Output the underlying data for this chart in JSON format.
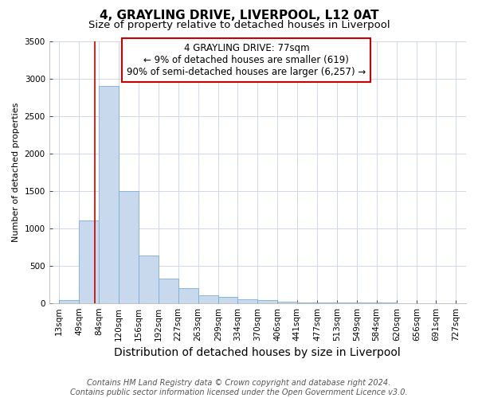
{
  "title": "4, GRAYLING DRIVE, LIVERPOOL, L12 0AT",
  "subtitle": "Size of property relative to detached houses in Liverpool",
  "xlabel": "Distribution of detached houses by size in Liverpool",
  "ylabel": "Number of detached properties",
  "bar_color": "#c8d9ee",
  "bar_edge_color": "#7aafd4",
  "vline_color": "#cc0000",
  "vline_x": 77,
  "annotation_box_color": "#cc0000",
  "annotation_line1": "4 GRAYLING DRIVE: 77sqm",
  "annotation_line2": "← 9% of detached houses are smaller (619)",
  "annotation_line3": "90% of semi-detached houses are larger (6,257) →",
  "bins": [
    13,
    49,
    84,
    120,
    156,
    192,
    227,
    263,
    299,
    334,
    370,
    406,
    441,
    477,
    513,
    549,
    584,
    620,
    656,
    691,
    727
  ],
  "counts": [
    40,
    1100,
    2900,
    1500,
    630,
    330,
    200,
    105,
    80,
    50,
    35,
    20,
    12,
    8,
    5,
    3,
    2,
    1,
    1,
    1
  ],
  "ylim": [
    0,
    3500
  ],
  "yticks": [
    0,
    500,
    1000,
    1500,
    2000,
    2500,
    3000,
    3500
  ],
  "footer_line1": "Contains HM Land Registry data © Crown copyright and database right 2024.",
  "footer_line2": "Contains public sector information licensed under the Open Government Licence v3.0.",
  "plot_bg_color": "#ffffff",
  "fig_bg_color": "#ffffff",
  "grid_color": "#d0d8e8",
  "title_fontsize": 11,
  "subtitle_fontsize": 9.5,
  "xlabel_fontsize": 10,
  "ylabel_fontsize": 8,
  "tick_fontsize": 7.5,
  "footer_fontsize": 7,
  "annot_fontsize": 8.5
}
